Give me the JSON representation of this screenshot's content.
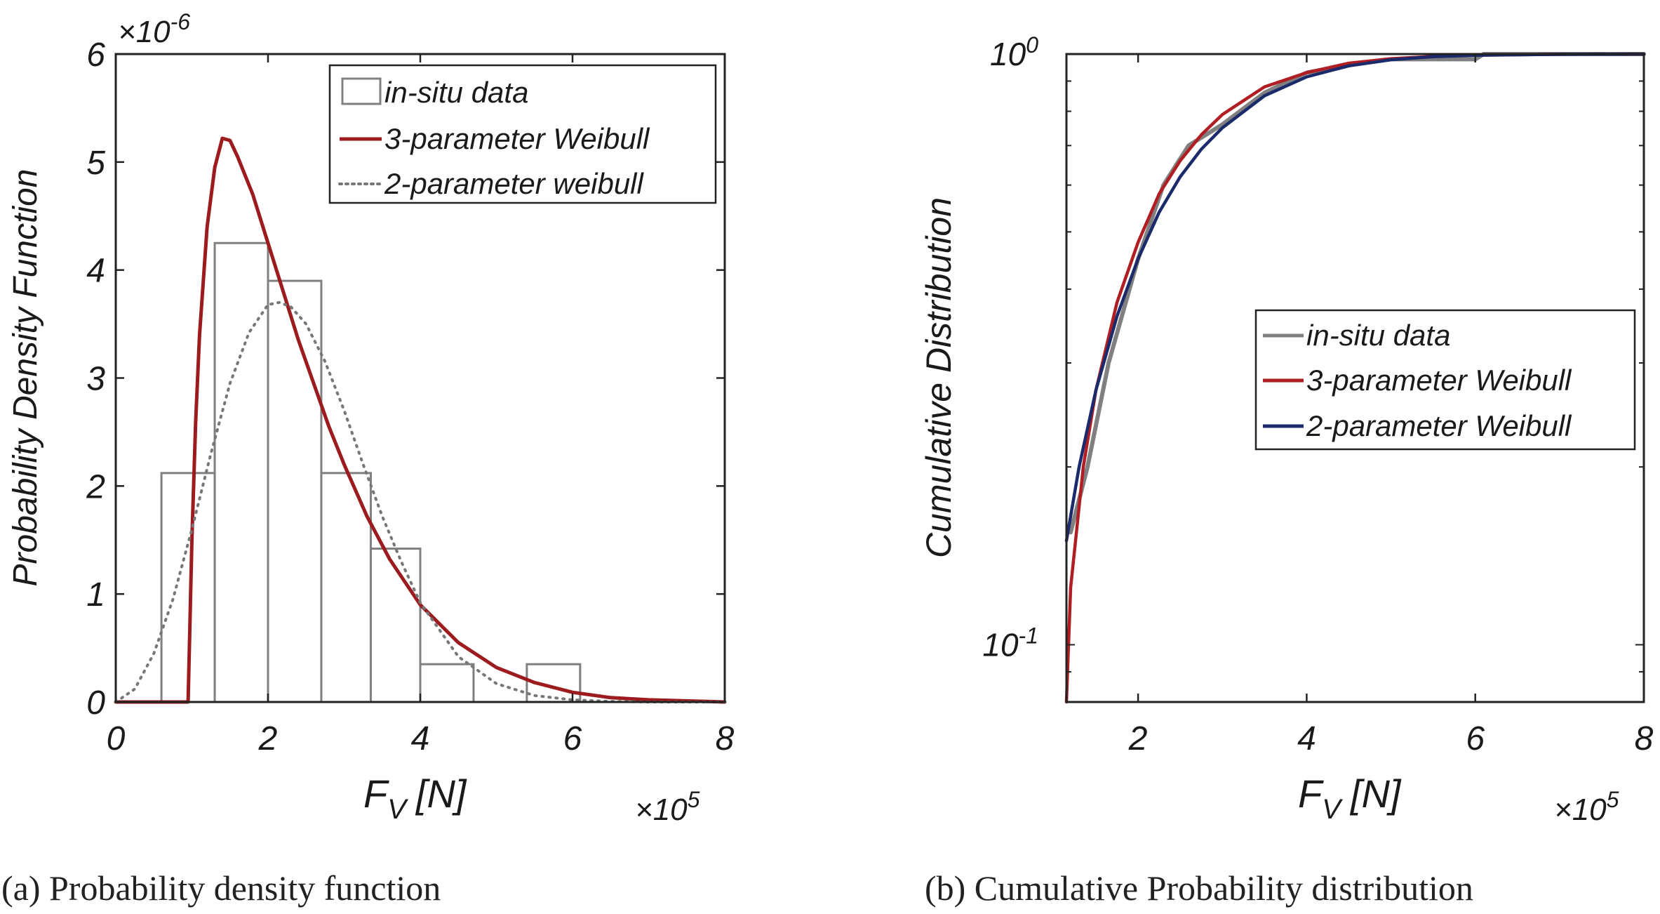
{
  "chart_data": [
    {
      "type": "bar",
      "panel_caption": "(a) Probability density function",
      "xlabel_main": "F",
      "xlabel_sub": "V",
      "xlabel_unit": "[N]",
      "x_multiplier_base": "×10",
      "x_multiplier_exp": "5",
      "ylabel": "Probability Density Function",
      "y_multiplier_base": "×10",
      "y_multiplier_exp": "-6",
      "xlim": [
        0,
        8
      ],
      "ylim": [
        0,
        6
      ],
      "xticks": [
        0,
        2,
        4,
        6,
        8
      ],
      "yticks": [
        0,
        1,
        2,
        3,
        4,
        5,
        6
      ],
      "histogram": {
        "name": "in-situ data",
        "edges": [
          0.6,
          1.3,
          2.0,
          2.7,
          3.35,
          4.0,
          4.7,
          5.4,
          6.1
        ],
        "values": [
          2.12,
          4.25,
          3.9,
          2.12,
          1.42,
          0.35,
          0.0,
          0.35
        ]
      },
      "series": [
        {
          "name": "3-parameter Weibull",
          "style": "solid",
          "color": "#9b1b1f",
          "x": [
            0,
            0.9,
            0.95,
            1.0,
            1.05,
            1.1,
            1.2,
            1.3,
            1.4,
            1.5,
            1.6,
            1.8,
            2.0,
            2.2,
            2.4,
            2.6,
            2.8,
            3.0,
            3.3,
            3.6,
            4.0,
            4.5,
            5.0,
            5.5,
            6.0,
            6.5,
            7.0,
            8.0
          ],
          "y": [
            0,
            0,
            0.0,
            1.5,
            2.6,
            3.4,
            4.4,
            4.95,
            5.22,
            5.2,
            5.05,
            4.7,
            4.25,
            3.8,
            3.35,
            2.95,
            2.55,
            2.2,
            1.72,
            1.32,
            0.9,
            0.55,
            0.32,
            0.18,
            0.09,
            0.04,
            0.02,
            0.0
          ]
        },
        {
          "name": "2-parameter weibull",
          "style": "dotted",
          "color": "#777777",
          "x": [
            0,
            0.25,
            0.5,
            0.75,
            1.0,
            1.25,
            1.5,
            1.75,
            2.0,
            2.15,
            2.3,
            2.5,
            2.75,
            3.0,
            3.25,
            3.5,
            3.75,
            4.0,
            4.5,
            5.0,
            5.5,
            6.0,
            6.5,
            7.0,
            8.0
          ],
          "y": [
            0,
            0.12,
            0.45,
            0.95,
            1.6,
            2.3,
            2.95,
            3.42,
            3.68,
            3.7,
            3.66,
            3.5,
            3.15,
            2.7,
            2.2,
            1.72,
            1.3,
            0.92,
            0.42,
            0.17,
            0.06,
            0.02,
            0.005,
            0.0,
            0.0
          ]
        }
      ],
      "legend": {
        "location": "top-right",
        "entries": [
          "in-situ data",
          "3-parameter Weibull",
          "2-parameter weibull"
        ]
      }
    },
    {
      "type": "line",
      "panel_caption": "(b) Cumulative Probability distribution",
      "xlabel_main": "F",
      "xlabel_sub": "V",
      "xlabel_unit": "[N]",
      "x_multiplier_base": "×10",
      "x_multiplier_exp": "5",
      "ylabel": "Cumulative Distribution",
      "yscale": "log",
      "xlim": [
        1.15,
        8
      ],
      "ylim": [
        0.08,
        1.0
      ],
      "xticks": [
        2,
        4,
        6,
        8
      ],
      "yticks": [
        {
          "value": 0.1,
          "base": "10",
          "exp": "-1"
        },
        {
          "value": 1.0,
          "base": "10",
          "exp": "0"
        }
      ],
      "series": [
        {
          "name": "in-situ data",
          "color": "#808080",
          "x": [
            1.2,
            1.4,
            1.65,
            2.0,
            2.3,
            2.6,
            3.0,
            3.5,
            4.0,
            4.6,
            5.0,
            5.5,
            6.0,
            6.1,
            8.0
          ],
          "y": [
            0.155,
            0.2,
            0.3,
            0.45,
            0.6,
            0.7,
            0.76,
            0.86,
            0.93,
            0.965,
            0.98,
            0.98,
            0.98,
            1.0,
            1.0
          ]
        },
        {
          "name": "3-parameter Weibull",
          "color": "#b01e23",
          "x": [
            1.15,
            1.2,
            1.35,
            1.5,
            1.75,
            2.0,
            2.25,
            2.5,
            2.75,
            3.0,
            3.5,
            4.0,
            4.5,
            5.0,
            5.5,
            6.0,
            7.0,
            8.0
          ],
          "y": [
            0.08,
            0.125,
            0.2,
            0.27,
            0.38,
            0.48,
            0.58,
            0.66,
            0.73,
            0.79,
            0.88,
            0.93,
            0.965,
            0.982,
            0.991,
            0.996,
            0.999,
            1.0
          ]
        },
        {
          "name": "2-parameter Weibull",
          "color": "#1b2a6b",
          "x": [
            1.15,
            1.3,
            1.5,
            1.75,
            2.0,
            2.25,
            2.5,
            2.75,
            3.0,
            3.5,
            4.0,
            4.5,
            5.0,
            5.5,
            6.0,
            7.0,
            8.0
          ],
          "y": [
            0.15,
            0.2,
            0.27,
            0.36,
            0.45,
            0.54,
            0.62,
            0.69,
            0.75,
            0.85,
            0.915,
            0.955,
            0.978,
            0.99,
            0.995,
            0.999,
            1.0
          ]
        }
      ],
      "legend": {
        "location": "center-right",
        "entries": [
          "in-situ data",
          "3-parameter Weibull",
          "2-parameter Weibull"
        ]
      }
    }
  ]
}
